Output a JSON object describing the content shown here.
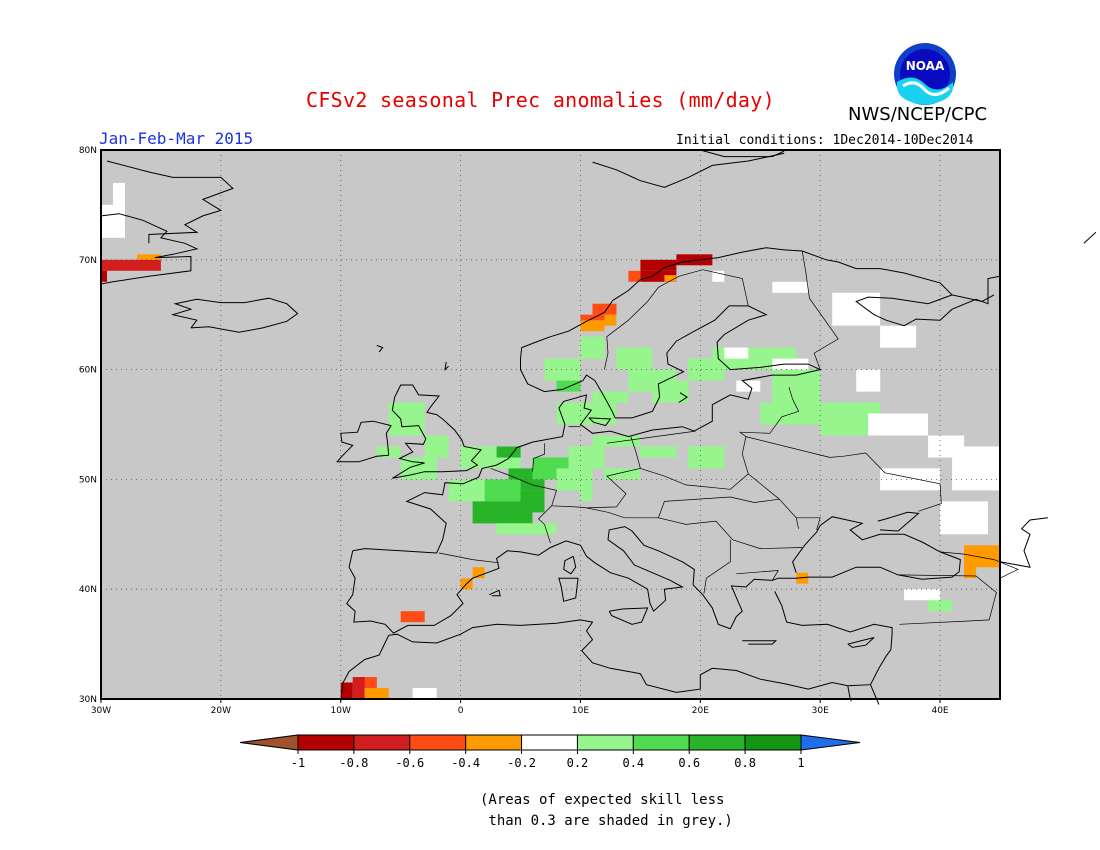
{
  "header": {
    "title": "CFSv2 seasonal Prec anomalies (mm/day)",
    "agency": "NWS/NCEP/CPC",
    "logo_text": "NOAA",
    "season": "Jan-Feb-Mar 2015",
    "initial_conditions": "Initial conditions: 1Dec2014-10Dec2014"
  },
  "map": {
    "lon_labels": [
      "30W",
      "20W",
      "10W",
      "0",
      "10E",
      "20E",
      "30E",
      "40E"
    ],
    "lat_labels": [
      "80N",
      "70N",
      "60N",
      "50N",
      "40N",
      "30N"
    ],
    "no_skill_color": "#c8c8c8",
    "ocean_color": "#c8c8c8"
  },
  "colorbar": {
    "ticks": [
      "-1",
      "-0.8",
      "-0.6",
      "-0.4",
      "-0.2",
      "0.2",
      "0.4",
      "0.6",
      "0.8",
      "1"
    ],
    "colors": [
      "#a0522d",
      "#b40000",
      "#d21e1e",
      "#ff4b14",
      "#ff9b00",
      "#ffffff",
      "#96f58c",
      "#50dc50",
      "#28b428",
      "#149614",
      "#1e6eeb"
    ]
  },
  "note": "(Areas of expected skill less\n than 0.3 are shaded in grey.)"
}
